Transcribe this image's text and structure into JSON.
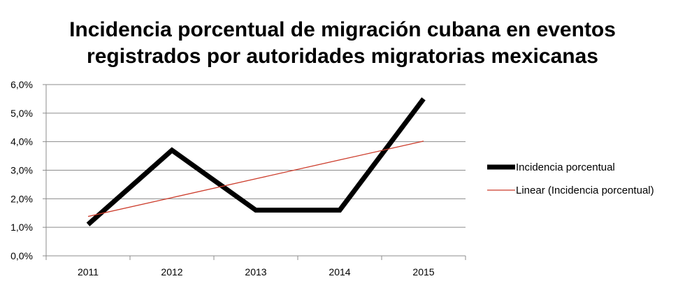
{
  "chart_data": {
    "type": "line",
    "title_lines": [
      "Incidencia porcentual de migración cubana en eventos",
      "registrados por autoridades migratorias mexicanas"
    ],
    "xlabel": "",
    "ylabel": "",
    "categories": [
      "2011",
      "2012",
      "2013",
      "2014",
      "2015"
    ],
    "y_ticks": [
      "0,0%",
      "1,0%",
      "2,0%",
      "3,0%",
      "4,0%",
      "5,0%",
      "6,0%"
    ],
    "ylim": [
      0,
      6
    ],
    "grid": true,
    "legend_position": "right",
    "series": [
      {
        "name": "Incidencia porcentual",
        "values": [
          1.1,
          3.7,
          1.6,
          1.6,
          5.5
        ],
        "color": "#000000",
        "style": "thick"
      },
      {
        "name": "Linear (Incidencia porcentual)",
        "values": [
          1.38,
          2.04,
          2.7,
          3.36,
          4.02
        ],
        "color": "#cc3b2a",
        "style": "thin"
      }
    ]
  }
}
